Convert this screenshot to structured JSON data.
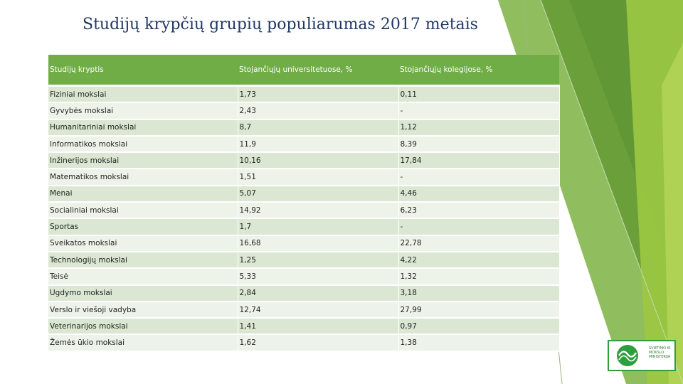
{
  "title": "Studijų krypčių grupių populiarumas 2017 metais",
  "table": {
    "headers": [
      "Studijų kryptis",
      "Stojančiųjų universitetuose, %",
      "Stojančiųjų kolegijose, %"
    ],
    "rows": [
      [
        "Fiziniai mokslai",
        "1,73",
        "0,11"
      ],
      [
        "Gyvybės mokslai",
        "2,43",
        "-"
      ],
      [
        "Humanitariniai mokslai",
        "8,7",
        "1,12"
      ],
      [
        "Informatikos mokslai",
        "11,9",
        "8,39"
      ],
      [
        "Inžinerijos mokslai",
        "10,16",
        "17,84"
      ],
      [
        "Matematikos mokslai",
        "1,51",
        "-"
      ],
      [
        "Menai",
        "5,07",
        "4,46"
      ],
      [
        "Socialiniai mokslai",
        "14,92",
        "6,23"
      ],
      [
        "Sportas",
        "1,7",
        "-"
      ],
      [
        "Sveikatos mokslai",
        "16,68",
        "22,78"
      ],
      [
        "Technologijų mokslai",
        "1,25",
        "4,22"
      ],
      [
        "Teisė",
        "5,33",
        "1,32"
      ],
      [
        "Ugdymo mokslai",
        "2,84",
        "3,18"
      ],
      [
        "Verslo ir viešoji vadyba",
        "12,74",
        "27,99"
      ],
      [
        "Veterinarijos mokslai",
        "1,41",
        "0,97"
      ],
      [
        "Žemės ūkio mokslai",
        "1,62",
        "1,38"
      ]
    ]
  },
  "logo": {
    "icon": "ministry-logo-icon",
    "text": "ŠVIETIMO IR MOKSLO MINISTERIJA"
  },
  "colors": {
    "title": "#1f3864",
    "header_bg": "#70ad47",
    "row_odd": "#dbe7d2",
    "row_even": "#eef3ea",
    "decor_dark": "#6a9f3a",
    "decor_light": "#9cc843"
  }
}
